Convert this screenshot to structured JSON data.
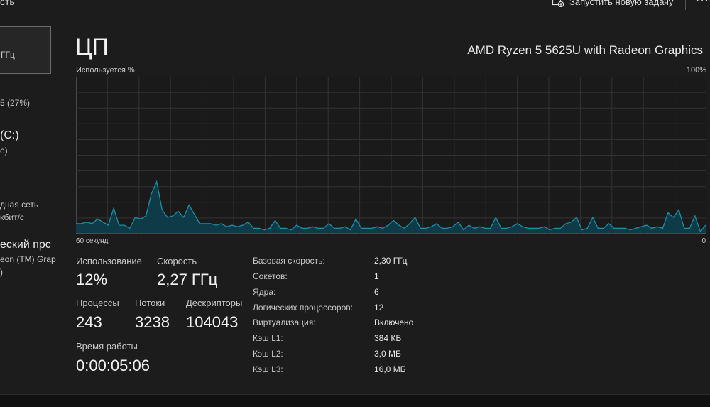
{
  "header": {
    "left_text": "сть",
    "new_task_label": "Запустить новую задачу",
    "more_label": "···"
  },
  "sidebar": {
    "items": [
      {
        "line1": "ГГц"
      },
      {
        "line1": "5 (27%)"
      },
      {
        "line1": "(C:)",
        "line2": "e)"
      },
      {
        "line1": "дная сеть",
        "line2": "кбит/с"
      },
      {
        "line1": "еский прс",
        "line2": "eon (TM) Grap",
        "line3": ")"
      }
    ]
  },
  "main": {
    "title": "ЦП",
    "cpu_name": "AMD Ryzen 5 5625U with Radeon Graphics",
    "graph": {
      "y_label": "Используется %",
      "y_max_label": "100%",
      "x_left_label": "60 секунд",
      "x_right_label": "0"
    },
    "stats": {
      "usage_label": "Использование",
      "usage_value": "12%",
      "speed_label": "Скорость",
      "speed_value": "2,27 ГГц",
      "processes_label": "Процессы",
      "processes_value": "243",
      "threads_label": "Потоки",
      "threads_value": "3238",
      "handles_label": "Дескрипторы",
      "handles_value": "104043",
      "uptime_label": "Время работы",
      "uptime_value": "0:00:05:06"
    },
    "info": [
      {
        "label": "Базовая скорость:",
        "value": "2,30 ГГц"
      },
      {
        "label": "Сокетов:",
        "value": "1"
      },
      {
        "label": "Ядра:",
        "value": "6"
      },
      {
        "label": "Логических процессоров:",
        "value": "12"
      },
      {
        "label": "Виртуализация:",
        "value": "Включено"
      },
      {
        "label": "Кэш L1:",
        "value": "384 КБ"
      },
      {
        "label": "Кэш L2:",
        "value": "3,0 МБ"
      },
      {
        "label": "Кэш L3:",
        "value": "16,0 МБ"
      }
    ]
  },
  "chart_data": {
    "type": "area",
    "xlabel": "",
    "ylabel": "Используется %",
    "x_range_label": [
      "60 секунд",
      "0"
    ],
    "ylim": [
      0,
      100
    ],
    "grid": true,
    "color": "#1a8fa5",
    "fill": "#0f3a47",
    "values": [
      6,
      6,
      7,
      6,
      9,
      7,
      5,
      16,
      5,
      5,
      3,
      10,
      9,
      11,
      25,
      33,
      15,
      10,
      11,
      14,
      10,
      18,
      12,
      6,
      6,
      6,
      5,
      6,
      4,
      5,
      4,
      5,
      7,
      3,
      3,
      2,
      3,
      8,
      3,
      3,
      2,
      5,
      3,
      3,
      4,
      3,
      3,
      6,
      3,
      3,
      4,
      2,
      9,
      3,
      3,
      3,
      4,
      3,
      5,
      8,
      5,
      3,
      6,
      10,
      3,
      3,
      4,
      6,
      3,
      3,
      4,
      7,
      2,
      5,
      3,
      4,
      3,
      3,
      10,
      3,
      3,
      4,
      6,
      4,
      3,
      3,
      3,
      4,
      2,
      3,
      3,
      6,
      7,
      10,
      2,
      3,
      10,
      3,
      3,
      6,
      3,
      3,
      3,
      2,
      3,
      4,
      5,
      3,
      4,
      3,
      13,
      10,
      15,
      3,
      3,
      11,
      1,
      5
    ]
  }
}
